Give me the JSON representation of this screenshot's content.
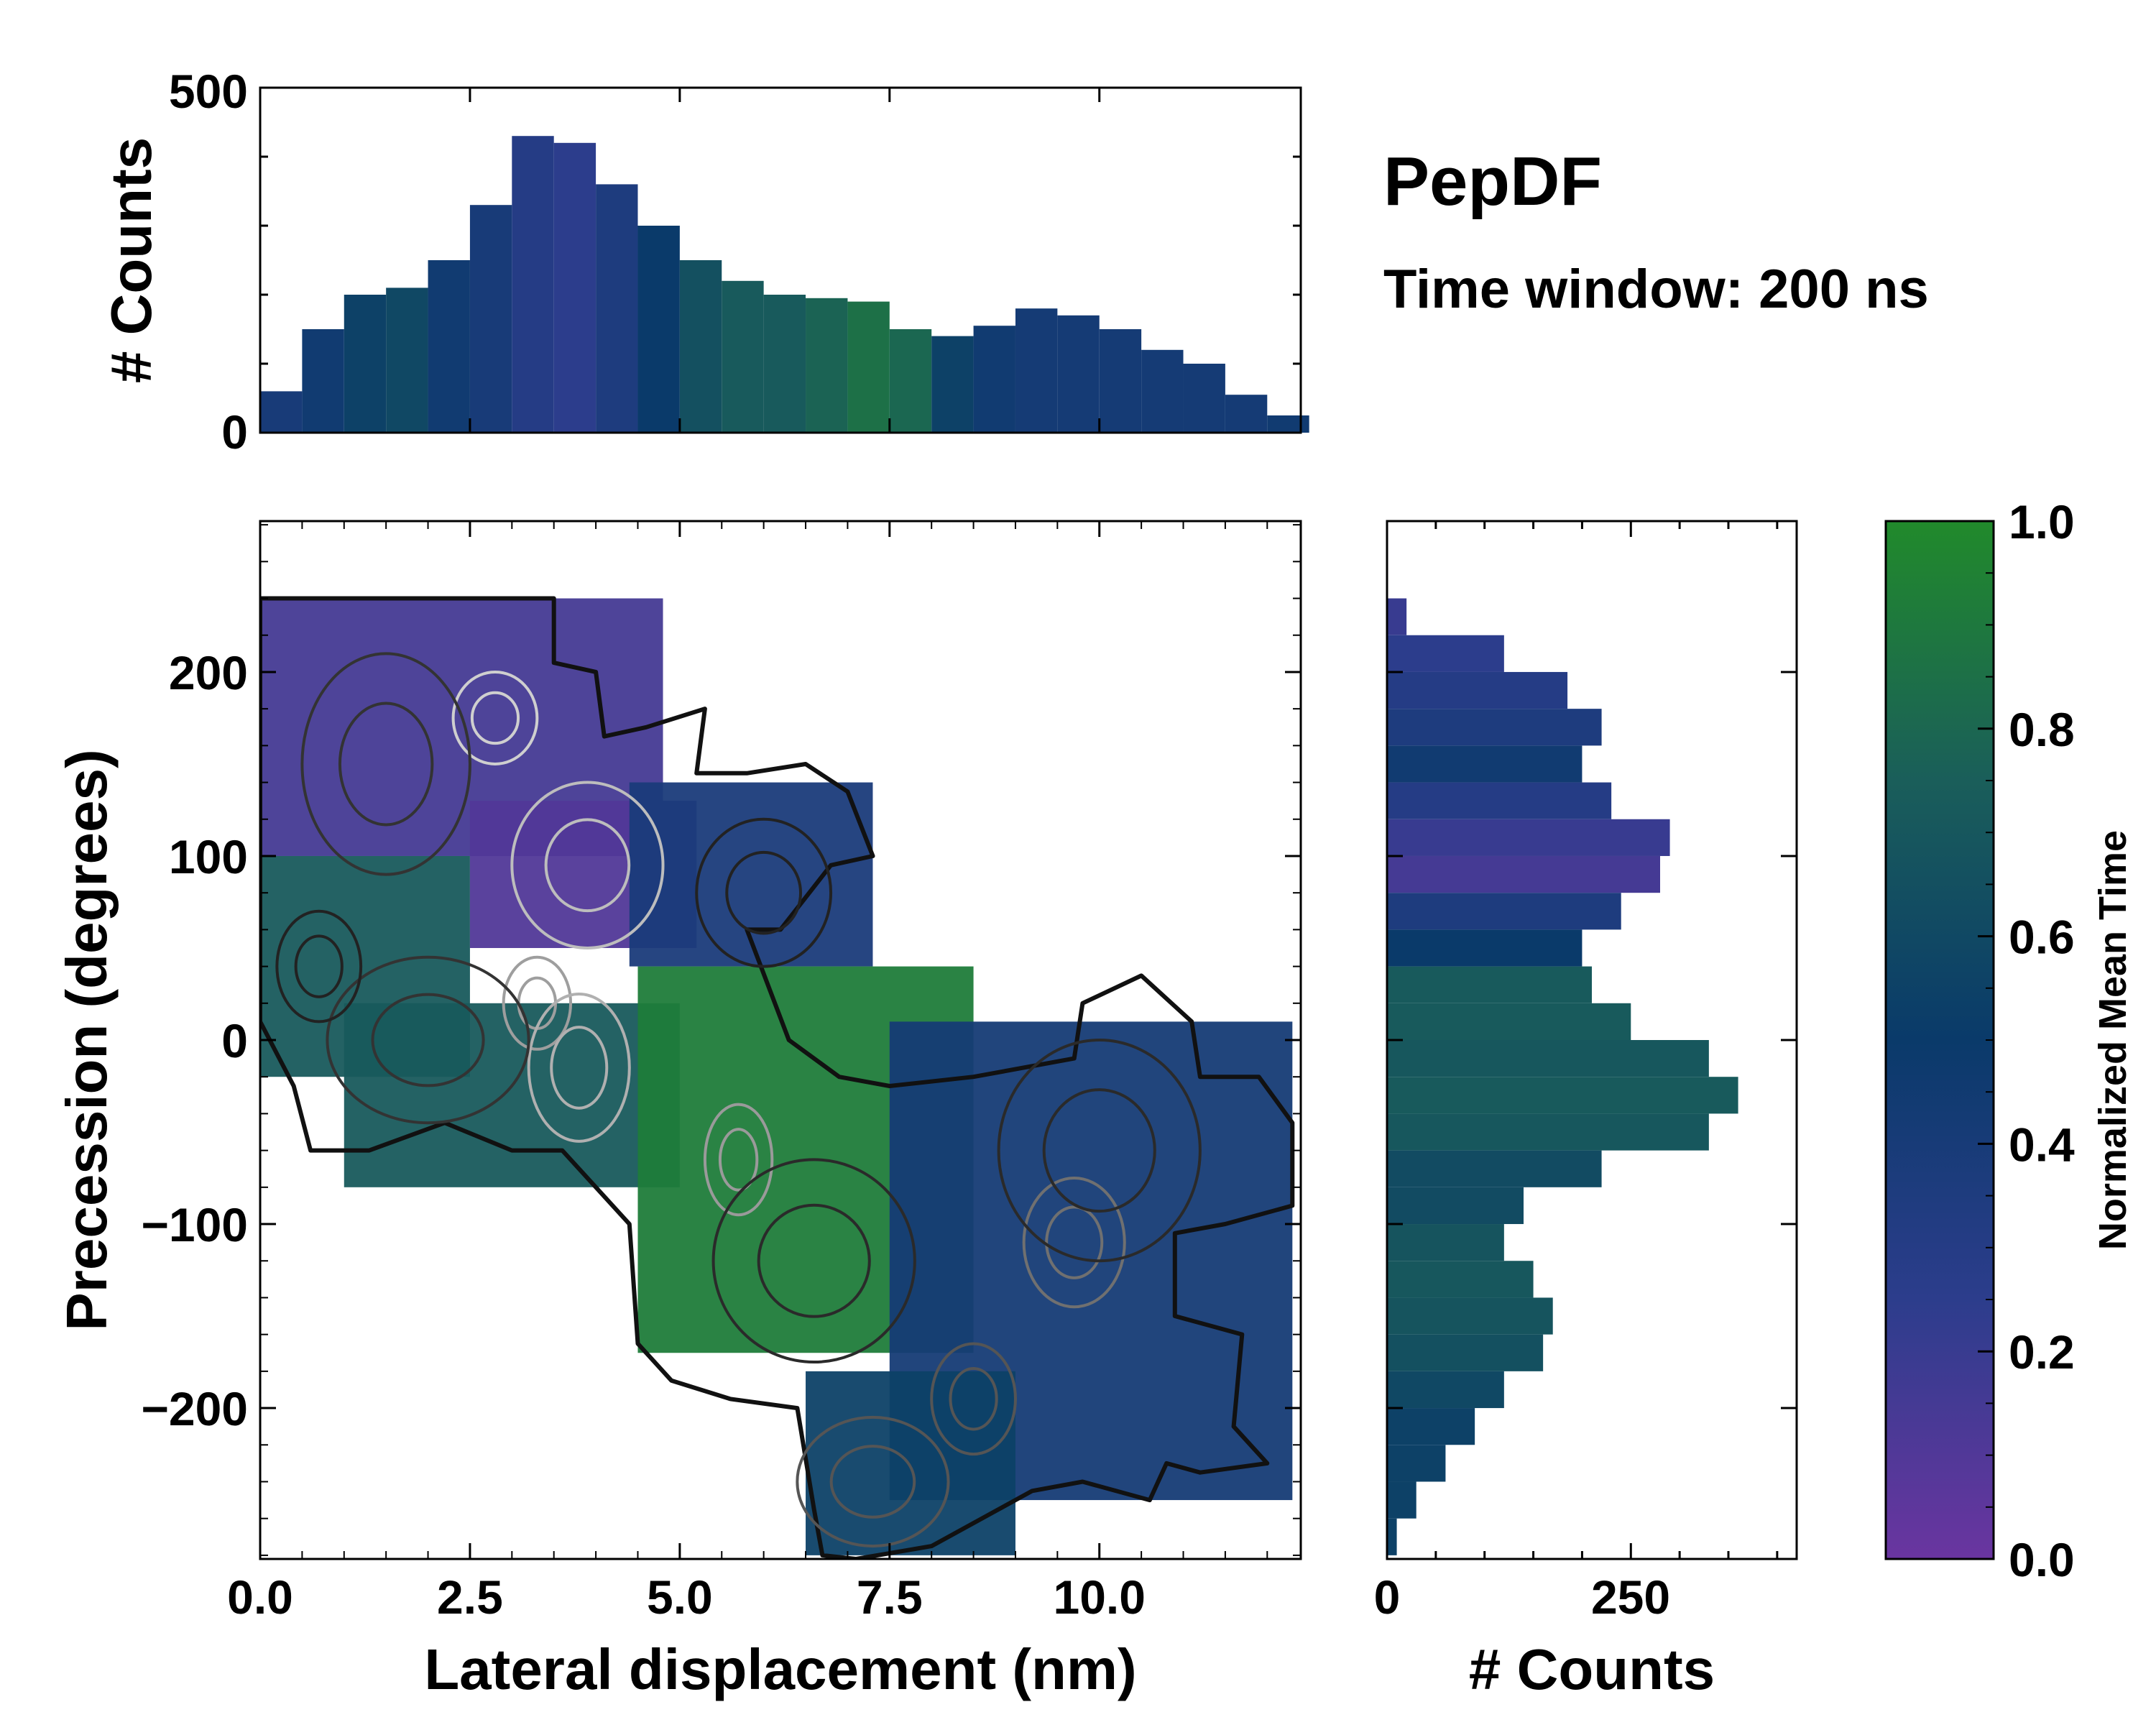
{
  "chart_data": [
    {
      "panel": "main",
      "type": "heatmap",
      "title": "PepDF",
      "subtitle": "Time window: 200 ns",
      "xlabel": "Lateral displacement (nm)",
      "ylabel": "Precession (degrees)",
      "xlim": [
        0,
        12.4
      ],
      "ylim": [
        -282,
        282
      ],
      "xticks": [
        0.0,
        2.5,
        5.0,
        7.5,
        10.0
      ],
      "xtick_labels": [
        "0.0",
        "2.5",
        "5.0",
        "7.5",
        "10.0"
      ],
      "yticks": [
        200,
        100,
        0,
        -100,
        -200
      ],
      "ytick_labels": [
        "200",
        "100",
        "0",
        "−100",
        "−200"
      ],
      "color_value": "Normalized Mean Time",
      "regions": [
        {
          "x": [
            0.0,
            4.8
          ],
          "y": [
            100,
            240
          ],
          "value": 0.15
        },
        {
          "x": [
            0.0,
            2.5
          ],
          "y": [
            -20,
            100
          ],
          "value": 0.72
        },
        {
          "x": [
            2.5,
            5.2
          ],
          "y": [
            50,
            130
          ],
          "value": 0.1
        },
        {
          "x": [
            4.4,
            7.3
          ],
          "y": [
            40,
            140
          ],
          "value": 0.38
        },
        {
          "x": [
            1.0,
            5.0
          ],
          "y": [
            -80,
            20
          ],
          "value": 0.72
        },
        {
          "x": [
            4.5,
            8.5
          ],
          "y": [
            -170,
            40
          ],
          "value": 0.92
        },
        {
          "x": [
            7.5,
            12.3
          ],
          "y": [
            -250,
            10
          ],
          "value": 0.42
        },
        {
          "x": [
            6.5,
            9.0
          ],
          "y": [
            -280,
            -180
          ],
          "value": 0.55
        }
      ]
    },
    {
      "panel": "top-histogram",
      "type": "bar",
      "ylabel": "# Counts",
      "ylim": [
        0,
        500
      ],
      "yticks": [
        0,
        500
      ],
      "ytick_labels": [
        "0",
        "500"
      ],
      "x_centers": [
        0.25,
        0.75,
        1.25,
        1.75,
        2.25,
        2.75,
        3.25,
        3.75,
        4.25,
        4.75,
        5.25,
        5.75,
        6.25,
        6.75,
        7.25,
        7.75,
        8.25,
        8.75,
        9.25,
        9.75,
        10.25,
        10.75,
        11.25,
        11.75,
        12.25
      ],
      "values": [
        60,
        150,
        200,
        210,
        250,
        330,
        430,
        420,
        360,
        300,
        250,
        220,
        200,
        195,
        190,
        150,
        140,
        155,
        180,
        170,
        150,
        120,
        100,
        55,
        25
      ],
      "mean_time": [
        0.4,
        0.45,
        0.55,
        0.6,
        0.45,
        0.4,
        0.3,
        0.25,
        0.35,
        0.5,
        0.65,
        0.72,
        0.72,
        0.78,
        0.85,
        0.8,
        0.55,
        0.45,
        0.42,
        0.42,
        0.42,
        0.42,
        0.42,
        0.42,
        0.45
      ]
    },
    {
      "panel": "right-histogram",
      "type": "bar",
      "orientation": "horizontal",
      "xlabel": "# Counts",
      "xlim": [
        0,
        420
      ],
      "xticks": [
        0,
        250
      ],
      "xtick_labels": [
        "0",
        "250"
      ],
      "y_centers": [
        230,
        210,
        190,
        170,
        150,
        130,
        110,
        90,
        70,
        50,
        30,
        10,
        -10,
        -30,
        -50,
        -70,
        -90,
        -110,
        -130,
        -150,
        -170,
        -190,
        -210,
        -230,
        -250,
        -270
      ],
      "values": [
        20,
        120,
        185,
        220,
        200,
        230,
        290,
        280,
        240,
        200,
        210,
        250,
        330,
        360,
        330,
        220,
        140,
        120,
        150,
        170,
        160,
        120,
        90,
        60,
        30,
        10
      ],
      "mean_time": [
        0.2,
        0.25,
        0.3,
        0.35,
        0.45,
        0.3,
        0.2,
        0.15,
        0.35,
        0.5,
        0.72,
        0.72,
        0.7,
        0.72,
        0.7,
        0.62,
        0.62,
        0.68,
        0.7,
        0.68,
        0.65,
        0.6,
        0.55,
        0.55,
        0.55,
        0.55
      ]
    },
    {
      "panel": "colorbar",
      "type": "colorbar",
      "label": "Normalized Mean Time",
      "range": [
        0.0,
        1.0
      ],
      "ticks": [
        0.0,
        0.2,
        0.4,
        0.6,
        0.8,
        1.0
      ],
      "tick_labels": [
        "0.0",
        "0.2",
        "0.4",
        "0.6",
        "0.8",
        "1.0"
      ],
      "colormap": [
        "#6a35a0",
        "#2c3d8c",
        "#0a3a6a",
        "#1a5e5a",
        "#218a2b"
      ]
    }
  ]
}
